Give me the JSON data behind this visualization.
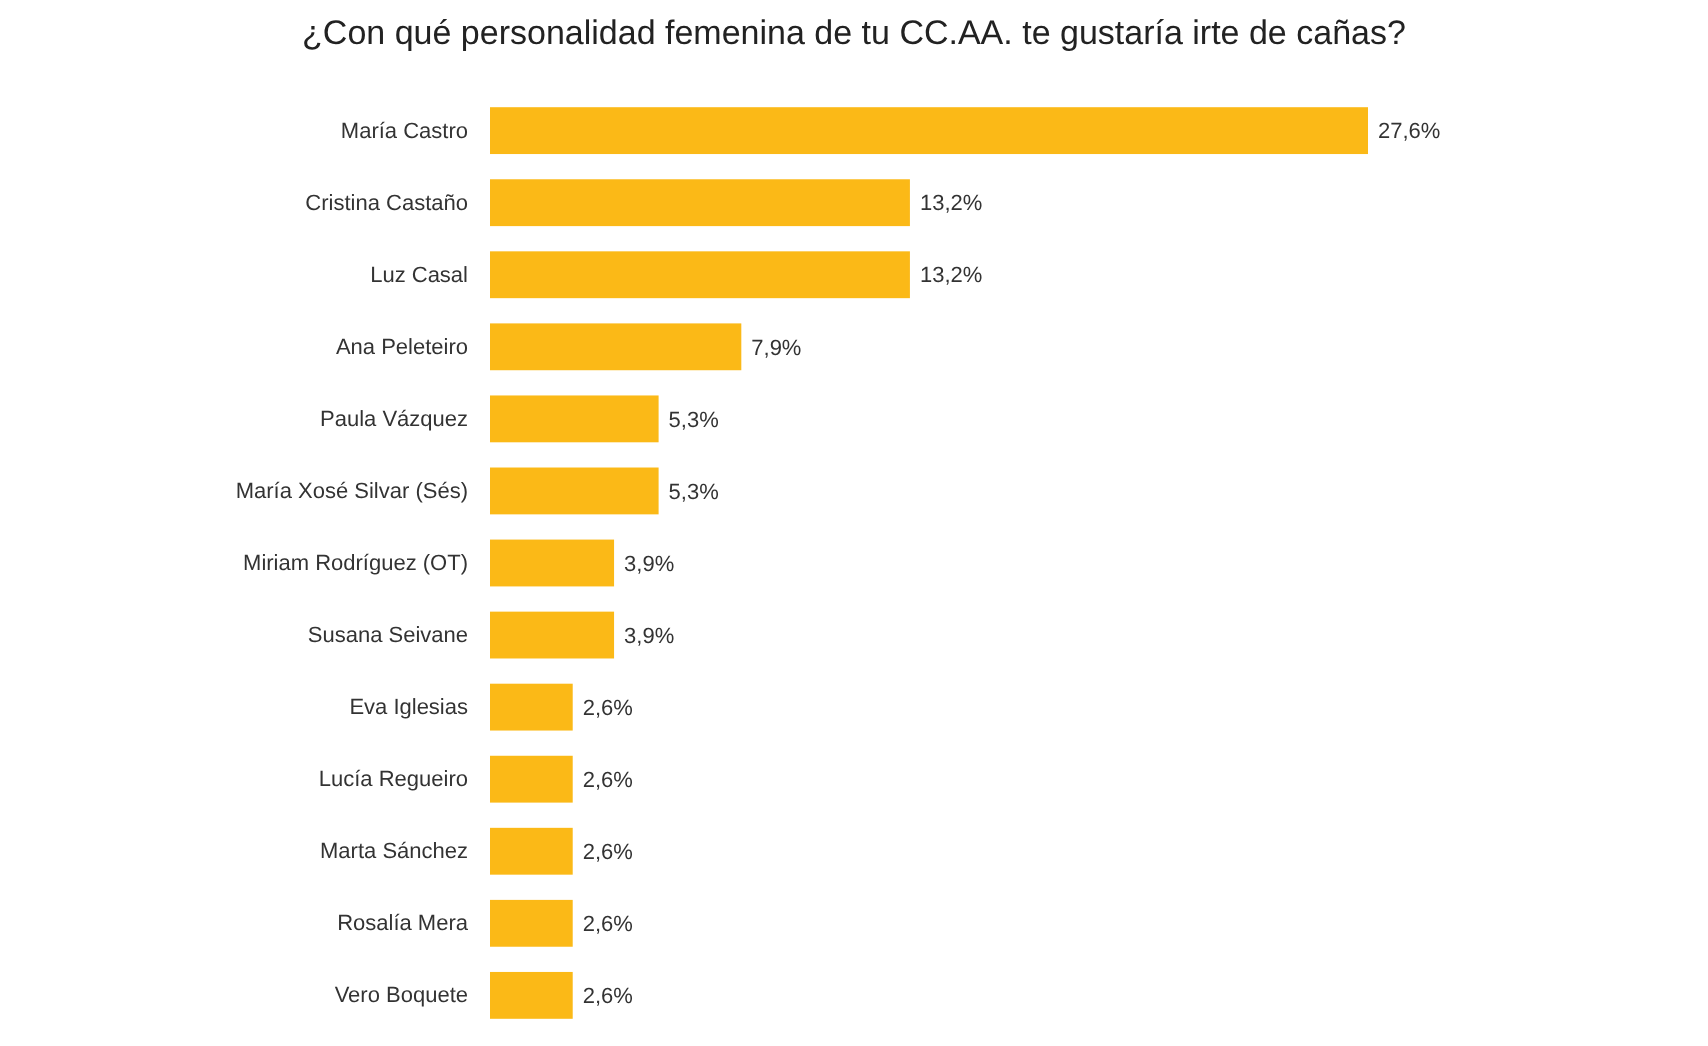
{
  "chart_data": {
    "type": "bar",
    "orientation": "horizontal",
    "title": "¿Con qué personalidad femenina de tu CC.AA. te gustaría irte de cañas?",
    "categories": [
      "María Castro",
      "Cristina Castaño",
      "Luz Casal",
      "Ana Peleteiro",
      "Paula Vázquez",
      "María Xosé Silvar (Sés)",
      "Miriam Rodríguez (OT)",
      "Susana Seivane",
      "Eva Iglesias",
      "Lucía Regueiro",
      "Marta Sánchez",
      "Rosalía Mera",
      "Vero Boquete"
    ],
    "values": [
      27.6,
      13.2,
      13.2,
      7.9,
      5.3,
      5.3,
      3.9,
      3.9,
      2.6,
      2.6,
      2.6,
      2.6,
      2.6
    ],
    "value_labels": [
      "27,6%",
      "13,2%",
      "13,2%",
      "7,9%",
      "5,3%",
      "5,3%",
      "3,9%",
      "3,9%",
      "2,6%",
      "2,6%",
      "2,6%",
      "2,6%",
      "2,6%"
    ],
    "color": "#fbb917",
    "tick_labels": "y",
    "grid": false
  }
}
